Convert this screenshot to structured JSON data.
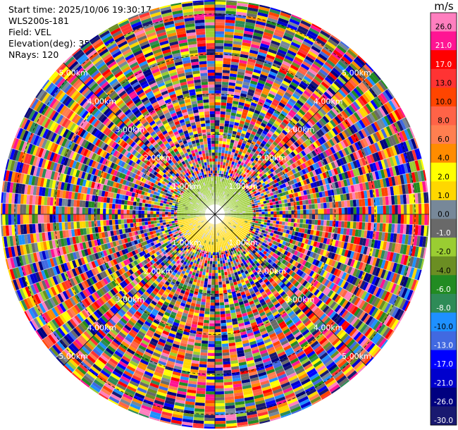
{
  "info": {
    "start_time": "Start time: 2025/10/06 19:30:17",
    "instrument": "WLS200s-181",
    "field": "Field: VEL",
    "elevation": "Elevation(deg): 35.00",
    "nrays": "NRays: 120"
  },
  "chart_data": {
    "type": "heatmap",
    "projection": "polar",
    "nrays": 120,
    "range_rings_km": [
      "1.00km",
      "2.00km",
      "3.00km",
      "4.00km",
      "5.00km"
    ],
    "colorbar": {
      "unit": "m/s",
      "ticks": [
        "26.0",
        "21.0",
        "17.0",
        "13.0",
        "10.0",
        "8.0",
        "6.0",
        "4.0",
        "2.0",
        "1.0",
        "0.0",
        "-1.0",
        "-2.0",
        "-4.0",
        "-6.0",
        "-8.0",
        "-10.0",
        "-13.0",
        "-17.0",
        "-21.0",
        "-26.0",
        "-30.0"
      ],
      "colors": [
        "#ff7fbf",
        "#ff1493",
        "#ff0000",
        "#ff3333",
        "#ff4500",
        "#ff6347",
        "#ff7f50",
        "#ff8c00",
        "#ffff00",
        "#ffd700",
        "#778899",
        "#696969",
        "#9acd32",
        "#6b8e23",
        "#228b22",
        "#2e8b57",
        "#1e90ff",
        "#4169e1",
        "#0000ff",
        "#0000cd",
        "#000080",
        "#191970"
      ]
    },
    "near_region": {
      "upper_half_color": "#9acd32",
      "lower_half_color": "#ffd700",
      "edge_km": 0.95
    }
  }
}
